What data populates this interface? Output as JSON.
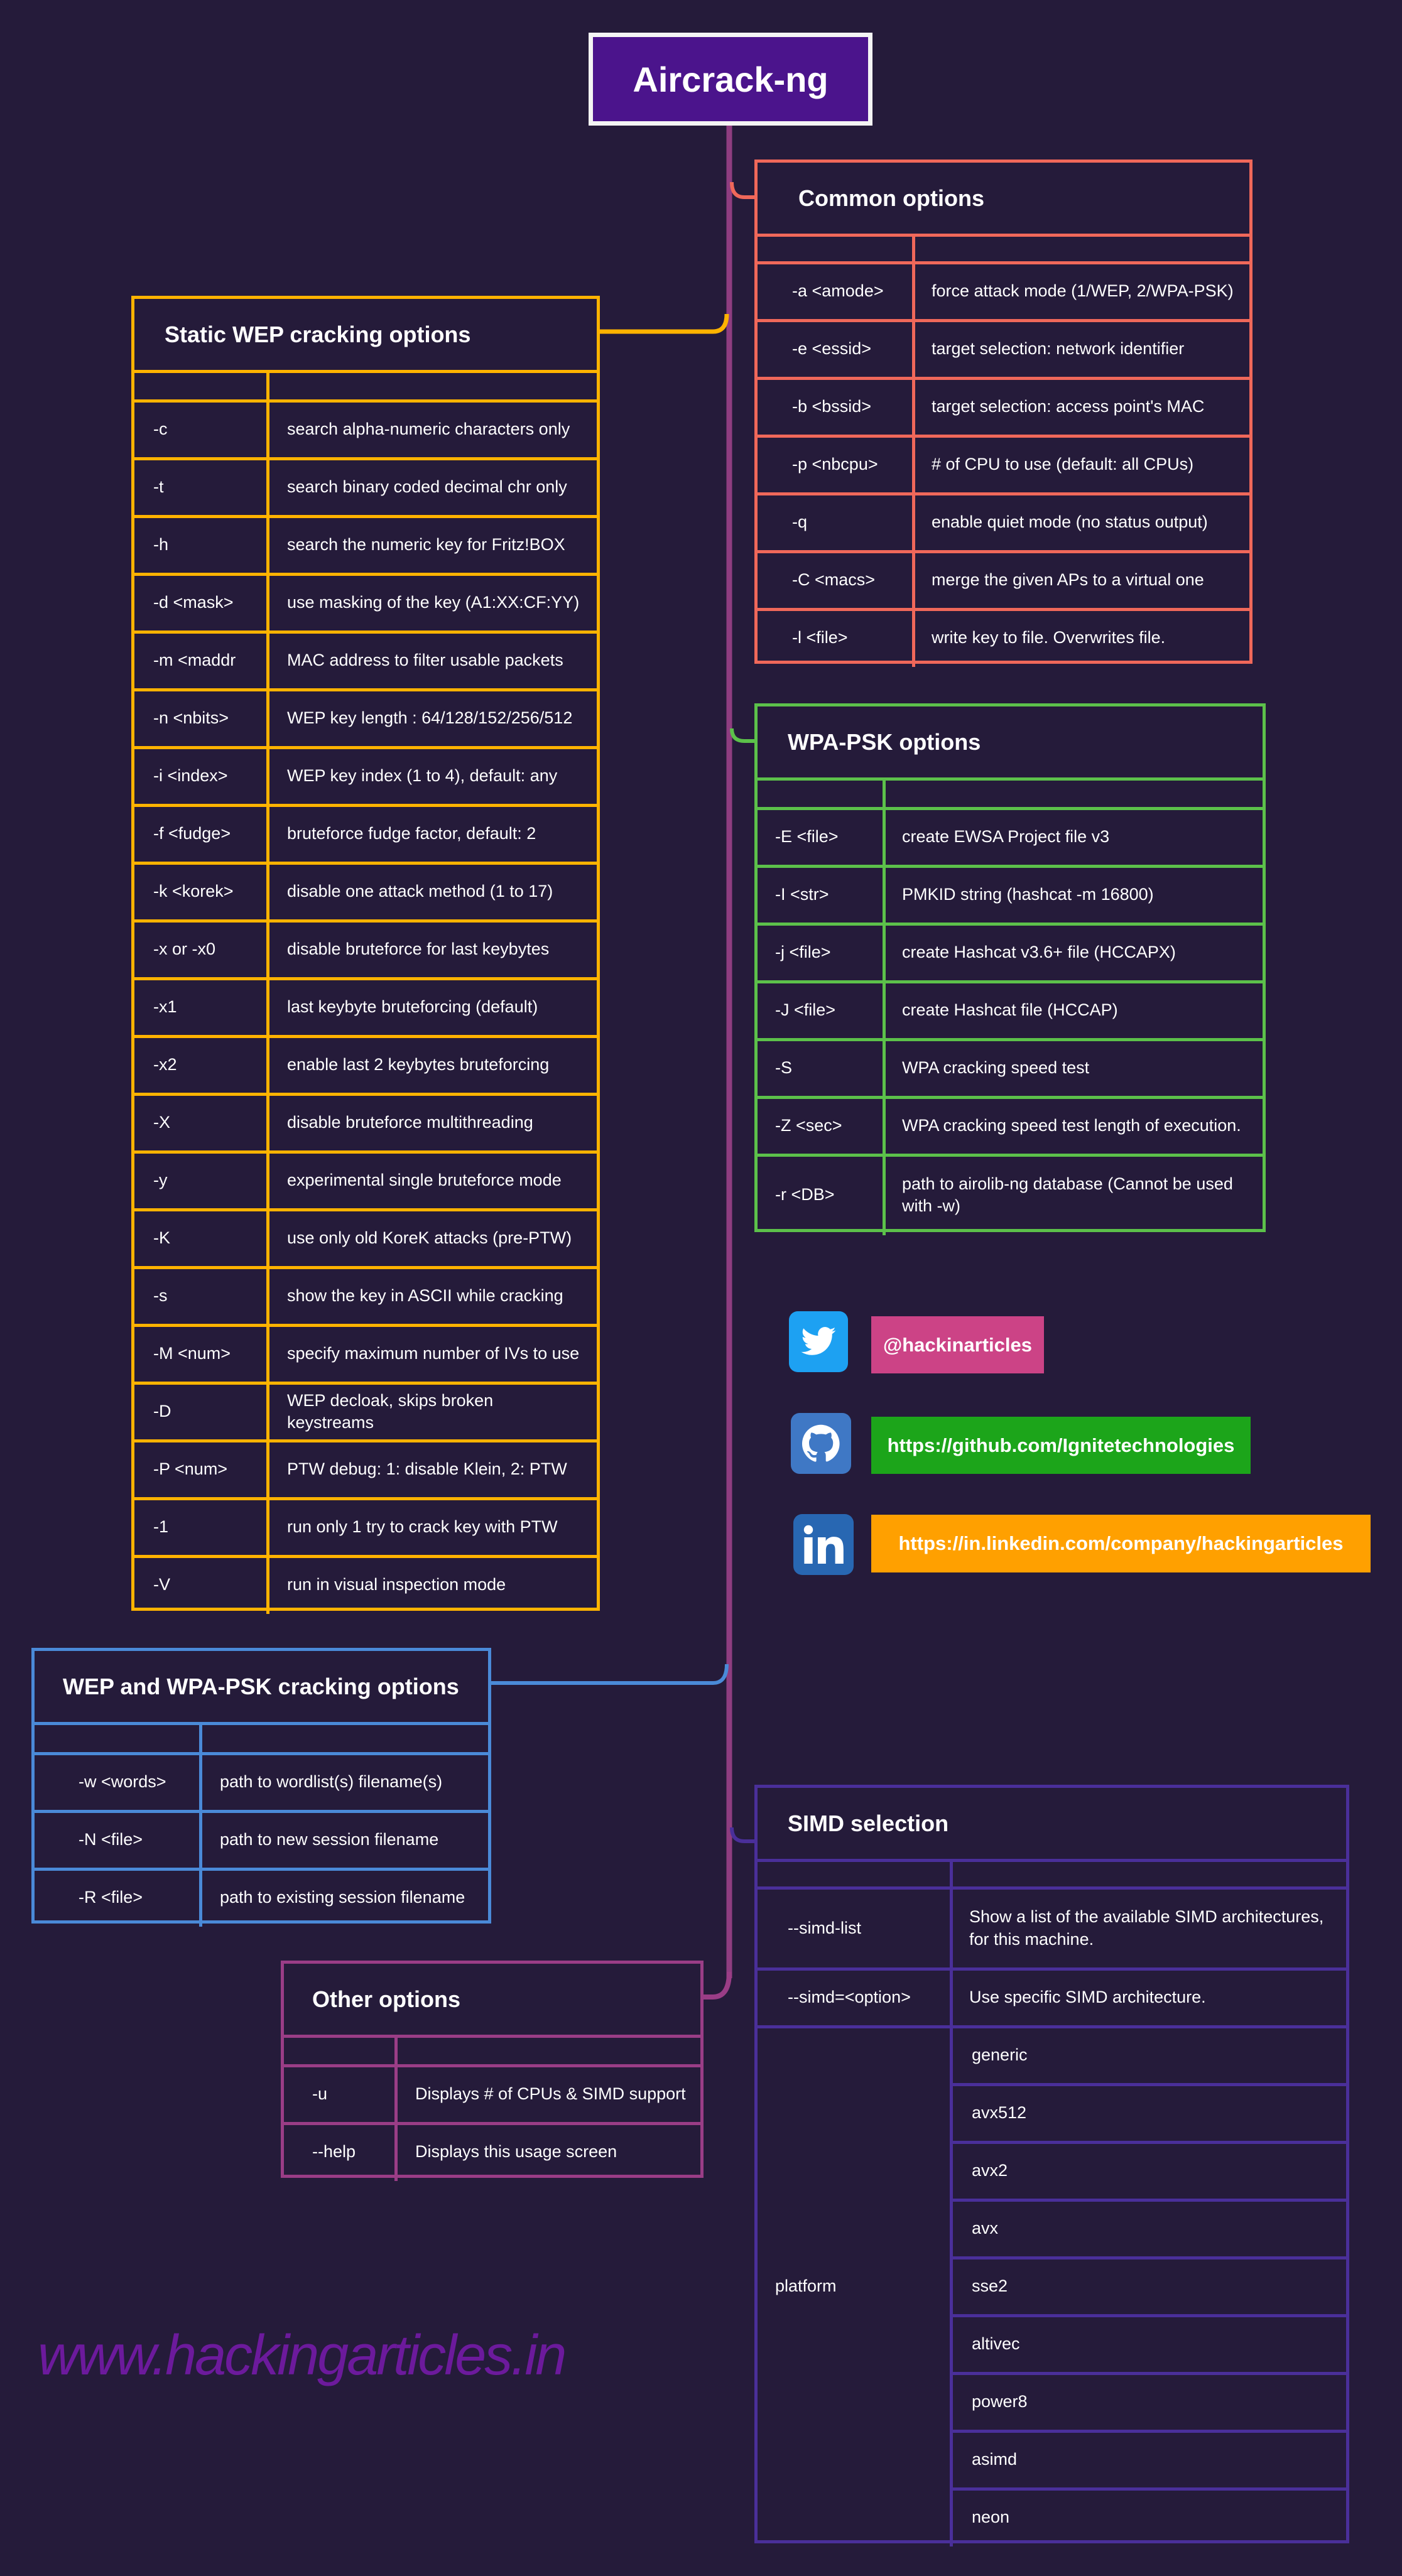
{
  "title": "Aircrack-ng",
  "colors": {
    "background": "#251b3a",
    "title_bg": "#4b148c",
    "spine": "#8e3d80",
    "common": "#f0685a",
    "static_wep": "#ffb300",
    "wpa_psk": "#5cc14a",
    "wep_wpa": "#4a8ad8",
    "other": "#9a3d86",
    "simd": "#4a2f9a"
  },
  "panels": {
    "common": {
      "title": "Common options",
      "rows": [
        [
          "-a <amode>",
          "force attack mode (1/WEP, 2/WPA-PSK)"
        ],
        [
          "-e <essid>",
          "target selection: network identifier"
        ],
        [
          "-b <bssid>",
          "target selection: access point's MAC"
        ],
        [
          "-p <nbcpu>",
          " # of CPU to use  (default: all CPUs)"
        ],
        [
          "-q",
          "enable quiet mode (no status output)"
        ],
        [
          "-C <macs>",
          "merge the given APs to a virtual one"
        ],
        [
          "-l <file>",
          " write key to file. Overwrites file."
        ]
      ]
    },
    "static_wep": {
      "title": "Static WEP cracking options",
      "rows": [
        [
          "-c",
          "search alpha-numeric characters only"
        ],
        [
          "-t",
          "search binary coded decimal chr only"
        ],
        [
          "-h",
          "search the numeric key for Fritz!BOX"
        ],
        [
          "-d <mask>",
          "use masking of the key (A1:XX:CF:YY)"
        ],
        [
          "-m <maddr",
          "MAC address to filter usable packets"
        ],
        [
          "-n <nbits>",
          "WEP key length :  64/128/152/256/512"
        ],
        [
          "-i <index>",
          "WEP key index (1 to 4), default: any"
        ],
        [
          "-f <fudge>",
          "bruteforce fudge factor,  default: 2"
        ],
        [
          "-k <korek>",
          "disable one attack method  (1 to 17)"
        ],
        [
          "-x or -x0",
          "disable bruteforce for last keybytes"
        ],
        [
          "-x1",
          "last keybyte bruteforcing  (default)"
        ],
        [
          "-x2",
          "enable last  2 keybytes bruteforcing"
        ],
        [
          "-X",
          "disable  bruteforce   multithreading"
        ],
        [
          "-y",
          "experimental  single bruteforce mode"
        ],
        [
          "-K",
          "use only old KoreK attacks (pre-PTW)"
        ],
        [
          "-s",
          "show the key in ASCII while cracking"
        ],
        [
          "-M <num>",
          "specify maximum number of IVs to use"
        ],
        [
          "-D",
          "WEP decloak, skips broken keystreams"
        ],
        [
          "-P <num>",
          "PTW debug:  1: disable Klein, 2: PTW"
        ],
        [
          "-1",
          "run only 1 try to crack key with PTW"
        ],
        [
          "-V",
          "run in visual inspection mode"
        ]
      ]
    },
    "wpa_psk": {
      "title": "WPA-PSK options",
      "rows": [
        [
          "-E <file>",
          "create EWSA Project file v3"
        ],
        [
          "-I <str>",
          "PMKID string (hashcat -m 16800)"
        ],
        [
          "-j <file>",
          "create Hashcat v3.6+ file (HCCAPX)"
        ],
        [
          "-J <file>",
          "create Hashcat file (HCCAP)"
        ],
        [
          "-S",
          "WPA cracking speed test"
        ],
        [
          "-Z <sec>",
          "WPA cracking speed test length of execution."
        ],
        [
          "-r <DB>",
          "path to airolib-ng database (Cannot be used with -w)"
        ]
      ]
    },
    "wep_wpa": {
      "title": "WEP and WPA-PSK cracking options",
      "rows": [
        [
          "-w <words>",
          "path to wordlist(s) filename(s)"
        ],
        [
          "-N <file>",
          "path to new session filename"
        ],
        [
          "-R <file>",
          "path to existing session filename"
        ]
      ]
    },
    "other": {
      "title": "Other options",
      "rows": [
        [
          "-u",
          "Displays # of CPUs & SIMD support"
        ],
        [
          "--help",
          "Displays this usage screen"
        ]
      ]
    },
    "simd": {
      "title": "SIMD selection",
      "rows": [
        [
          "--simd-list",
          "Show a list of the available SIMD architectures, for this machine."
        ],
        [
          "--simd=<option>",
          "Use specific SIMD architecture."
        ]
      ],
      "platform_label": "platform",
      "platforms": [
        "generic",
        "avx512",
        "avx2",
        "avx",
        "sse2",
        "altivec",
        "power8",
        "asimd",
        "neon"
      ]
    }
  },
  "social": [
    {
      "icon": "twitter-icon",
      "label": "@hackinarticles",
      "color": "#cc4386",
      "icon_color": "#1da1f2"
    },
    {
      "icon": "github-icon",
      "label": "https://github.com/Ignitetechnologies",
      "color": "#1ca51a",
      "icon_color": "#3f78c5"
    },
    {
      "icon": "linkedin-icon",
      "label": "https://in.linkedin.com/company/hackingarticles",
      "color": "#ffa000",
      "icon_color": "#2867b2"
    }
  ],
  "watermark": "www.hackingarticles.in"
}
